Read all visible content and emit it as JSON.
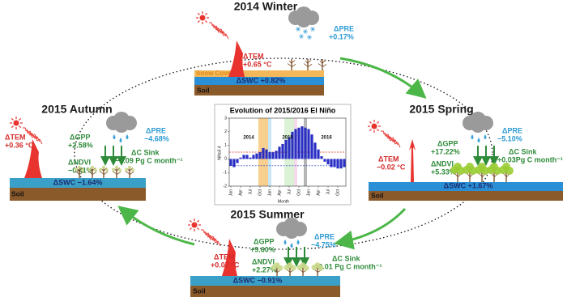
{
  "panels": {
    "winter": {
      "title": "2014 Winter",
      "tem_label": "ΔTEM",
      "tem": "+0.65 °C",
      "pre_label": "ΔPRE",
      "pre": "+0.17%",
      "snow": "Snow Cover",
      "swc": "ΔSWC +0.82%",
      "soil": "Soil"
    },
    "autumn": {
      "title": "2015 Autumn",
      "tem_label": "ΔTEM",
      "tem": "+0.36 °C",
      "gpp_label": "ΔGPP",
      "gpp": "+2.58%",
      "ndvi_label": "ΔNDVI",
      "ndvi": "−0.41%",
      "pre_label": "ΔPRE",
      "pre": "−4.68%",
      "csink_label": "ΔC Sink",
      "csink": "−0.09 Pg C month⁻¹",
      "swc": "ΔSWC −1.64%",
      "soil": "Soil"
    },
    "spring": {
      "title": "2015 Spring",
      "tem_label": "ΔTEM",
      "tem": "−0.02 °C",
      "gpp_label": "ΔGPP",
      "gpp": "+17.22%",
      "ndvi_label": "ΔNDVI",
      "ndvi": "+5.33%",
      "pre_label": "ΔPRE",
      "pre": "−5.10%",
      "csink_label": "ΔC Sink",
      "csink": "+0.03Pg C month⁻¹",
      "swc": "ΔSWC +1.67%",
      "soil": "Soil"
    },
    "summer": {
      "title": "2015 Summer",
      "tem_label": "ΔTEM",
      "tem": "+0.07 °C",
      "gpp_label": "ΔGPP",
      "gpp": "+9.60%",
      "ndvi_label": "ΔNDVI",
      "ndvi": "+2.27%",
      "pre_label": "ΔPRE",
      "pre": "−4.75%",
      "csink_label": "ΔC Sink",
      "csink": "+0.01 Pg C month⁻¹",
      "swc": "ΔSWC −0.91%",
      "soil": "Soil"
    }
  },
  "enso_chart": {
    "type": "bar",
    "title": "Evolution of 2015/2016 El Niño",
    "x_label": "Month",
    "y_label": "Niño3.4",
    "years": [
      "2014",
      "2015",
      "2016"
    ],
    "categories": [
      "Jan",
      null,
      null,
      "Apr",
      null,
      null,
      "Jul",
      null,
      null,
      "Oct",
      null,
      null,
      "Jan",
      null,
      null,
      "Apr",
      null,
      null,
      "Jul",
      null,
      null,
      "Oct",
      null,
      null,
      "Jan",
      null,
      null,
      "Apr",
      null,
      null,
      "Jul",
      null,
      null,
      "Oct",
      null,
      null
    ],
    "values": [
      -0.5,
      -0.6,
      -0.3,
      0.1,
      0.3,
      0.3,
      0.1,
      0.3,
      0.4,
      0.5,
      0.8,
      0.7,
      0.5,
      0.5,
      0.6,
      0.9,
      1.1,
      1.4,
      1.6,
      2.0,
      2.2,
      2.3,
      2.4,
      2.3,
      2.2,
      1.8,
      1.2,
      0.7,
      0.2,
      -0.2,
      -0.4,
      -0.6,
      -0.6,
      -0.7,
      -0.7,
      -0.6
    ],
    "color": "#2a2fc4",
    "ylim": [
      -2,
      3
    ],
    "yticks": [
      -2,
      -1,
      0,
      1,
      2,
      3
    ],
    "reference_lines": [
      {
        "value": 0.5,
        "color": "#d62728"
      },
      {
        "value": -0.5,
        "color": "#1f3fbf"
      }
    ]
  }
}
